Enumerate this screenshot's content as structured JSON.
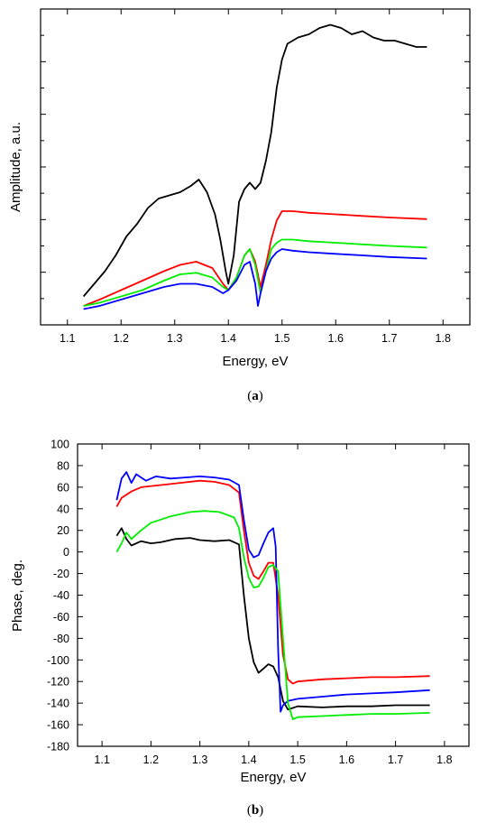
{
  "chart_data": [
    {
      "type": "line",
      "panel_label": {
        "open": "(",
        "letter": "a",
        "close": ")"
      },
      "xlabel": "Energy, eV",
      "ylabel": "Amplitude, a.u.",
      "xlim": [
        1.05,
        1.85
      ],
      "ylim": [
        0,
        1.0
      ],
      "x_ticks": [
        "1.1",
        "1.2",
        "1.3",
        "1.4",
        "1.5",
        "1.6",
        "1.7",
        "1.8"
      ],
      "y_tick_labels_shown": false,
      "series": [
        {
          "color": "#000000",
          "points": [
            [
              1.13,
              0.09
            ],
            [
              1.15,
              0.13
            ],
            [
              1.17,
              0.17
            ],
            [
              1.19,
              0.22
            ],
            [
              1.21,
              0.28
            ],
            [
              1.23,
              0.32
            ],
            [
              1.25,
              0.37
            ],
            [
              1.27,
              0.4
            ],
            [
              1.29,
              0.41
            ],
            [
              1.31,
              0.42
            ],
            [
              1.33,
              0.44
            ],
            [
              1.345,
              0.46
            ],
            [
              1.36,
              0.42
            ],
            [
              1.375,
              0.35
            ],
            [
              1.385,
              0.27
            ],
            [
              1.395,
              0.17
            ],
            [
              1.4,
              0.13
            ],
            [
              1.41,
              0.22
            ],
            [
              1.42,
              0.39
            ],
            [
              1.43,
              0.43
            ],
            [
              1.44,
              0.45
            ],
            [
              1.45,
              0.43
            ],
            [
              1.46,
              0.45
            ],
            [
              1.47,
              0.52
            ],
            [
              1.48,
              0.61
            ],
            [
              1.49,
              0.75
            ],
            [
              1.5,
              0.84
            ],
            [
              1.51,
              0.89
            ],
            [
              1.53,
              0.91
            ],
            [
              1.55,
              0.92
            ],
            [
              1.57,
              0.94
            ],
            [
              1.59,
              0.95
            ],
            [
              1.61,
              0.94
            ],
            [
              1.63,
              0.92
            ],
            [
              1.65,
              0.93
            ],
            [
              1.67,
              0.91
            ],
            [
              1.69,
              0.9
            ],
            [
              1.71,
              0.9
            ],
            [
              1.73,
              0.89
            ],
            [
              1.75,
              0.88
            ],
            [
              1.77,
              0.88
            ]
          ]
        },
        {
          "color": "#ff0000",
          "points": [
            [
              1.13,
              0.06
            ],
            [
              1.16,
              0.08
            ],
            [
              1.2,
              0.11
            ],
            [
              1.24,
              0.14
            ],
            [
              1.28,
              0.17
            ],
            [
              1.31,
              0.19
            ],
            [
              1.34,
              0.2
            ],
            [
              1.37,
              0.18
            ],
            [
              1.39,
              0.13
            ],
            [
              1.4,
              0.11
            ],
            [
              1.415,
              0.15
            ],
            [
              1.43,
              0.22
            ],
            [
              1.44,
              0.24
            ],
            [
              1.45,
              0.2
            ],
            [
              1.46,
              0.12
            ],
            [
              1.47,
              0.19
            ],
            [
              1.48,
              0.27
            ],
            [
              1.49,
              0.33
            ],
            [
              1.5,
              0.36
            ],
            [
              1.52,
              0.36
            ],
            [
              1.55,
              0.355
            ],
            [
              1.6,
              0.35
            ],
            [
              1.65,
              0.345
            ],
            [
              1.7,
              0.34
            ],
            [
              1.77,
              0.335
            ]
          ]
        },
        {
          "color": "#00ee00",
          "points": [
            [
              1.13,
              0.06
            ],
            [
              1.16,
              0.07
            ],
            [
              1.2,
              0.09
            ],
            [
              1.24,
              0.11
            ],
            [
              1.28,
              0.14
            ],
            [
              1.31,
              0.16
            ],
            [
              1.34,
              0.165
            ],
            [
              1.37,
              0.15
            ],
            [
              1.39,
              0.12
            ],
            [
              1.4,
              0.11
            ],
            [
              1.415,
              0.15
            ],
            [
              1.43,
              0.22
            ],
            [
              1.44,
              0.24
            ],
            [
              1.45,
              0.19
            ],
            [
              1.46,
              0.1
            ],
            [
              1.47,
              0.17
            ],
            [
              1.48,
              0.24
            ],
            [
              1.49,
              0.26
            ],
            [
              1.5,
              0.27
            ],
            [
              1.52,
              0.27
            ],
            [
              1.55,
              0.265
            ],
            [
              1.6,
              0.26
            ],
            [
              1.65,
              0.255
            ],
            [
              1.7,
              0.25
            ],
            [
              1.77,
              0.245
            ]
          ]
        },
        {
          "color": "#0000ff",
          "points": [
            [
              1.13,
              0.05
            ],
            [
              1.16,
              0.06
            ],
            [
              1.2,
              0.08
            ],
            [
              1.24,
              0.1
            ],
            [
              1.28,
              0.12
            ],
            [
              1.31,
              0.13
            ],
            [
              1.34,
              0.13
            ],
            [
              1.37,
              0.12
            ],
            [
              1.39,
              0.1
            ],
            [
              1.4,
              0.11
            ],
            [
              1.415,
              0.14
            ],
            [
              1.43,
              0.19
            ],
            [
              1.44,
              0.2
            ],
            [
              1.45,
              0.13
            ],
            [
              1.455,
              0.06
            ],
            [
              1.46,
              0.1
            ],
            [
              1.47,
              0.17
            ],
            [
              1.48,
              0.21
            ],
            [
              1.49,
              0.23
            ],
            [
              1.5,
              0.24
            ],
            [
              1.52,
              0.235
            ],
            [
              1.55,
              0.23
            ],
            [
              1.6,
              0.225
            ],
            [
              1.65,
              0.22
            ],
            [
              1.7,
              0.215
            ],
            [
              1.77,
              0.21
            ]
          ]
        }
      ]
    },
    {
      "type": "line",
      "panel_label": {
        "open": "(",
        "letter": "b",
        "close": ")"
      },
      "xlabel": "Energy, eV",
      "ylabel": "Phase, deg.",
      "xlim": [
        1.05,
        1.85
      ],
      "ylim": [
        -180,
        100
      ],
      "x_ticks": [
        "1.1",
        "1.2",
        "1.3",
        "1.4",
        "1.5",
        "1.6",
        "1.7",
        "1.8"
      ],
      "y_ticks": [
        "-180",
        "-160",
        "-140",
        "-120",
        "-100",
        "-80",
        "-60",
        "-40",
        "-20",
        "0",
        "20",
        "40",
        "60",
        "80",
        "100"
      ],
      "series": [
        {
          "color": "#000000",
          "points": [
            [
              1.13,
              15
            ],
            [
              1.14,
              22
            ],
            [
              1.15,
              12
            ],
            [
              1.16,
              6
            ],
            [
              1.18,
              10
            ],
            [
              1.2,
              8
            ],
            [
              1.22,
              9
            ],
            [
              1.25,
              12
            ],
            [
              1.28,
              13
            ],
            [
              1.3,
              11
            ],
            [
              1.33,
              10
            ],
            [
              1.36,
              11
            ],
            [
              1.38,
              7
            ],
            [
              1.39,
              -40
            ],
            [
              1.4,
              -80
            ],
            [
              1.41,
              -102
            ],
            [
              1.42,
              -112
            ],
            [
              1.43,
              -108
            ],
            [
              1.44,
              -104
            ],
            [
              1.45,
              -106
            ],
            [
              1.46,
              -116
            ],
            [
              1.47,
              -138
            ],
            [
              1.48,
              -146
            ],
            [
              1.5,
              -143
            ],
            [
              1.55,
              -144
            ],
            [
              1.6,
              -143
            ],
            [
              1.65,
              -143
            ],
            [
              1.7,
              -142
            ],
            [
              1.77,
              -142
            ]
          ]
        },
        {
          "color": "#ff0000",
          "points": [
            [
              1.13,
              42
            ],
            [
              1.14,
              50
            ],
            [
              1.16,
              56
            ],
            [
              1.18,
              60
            ],
            [
              1.22,
              62
            ],
            [
              1.26,
              64
            ],
            [
              1.3,
              66
            ],
            [
              1.33,
              65
            ],
            [
              1.36,
              62
            ],
            [
              1.38,
              55
            ],
            [
              1.39,
              20
            ],
            [
              1.4,
              -10
            ],
            [
              1.41,
              -22
            ],
            [
              1.42,
              -25
            ],
            [
              1.43,
              -18
            ],
            [
              1.44,
              -10
            ],
            [
              1.45,
              -10
            ],
            [
              1.46,
              -40
            ],
            [
              1.47,
              -95
            ],
            [
              1.48,
              -118
            ],
            [
              1.49,
              -122
            ],
            [
              1.5,
              -120
            ],
            [
              1.55,
              -118
            ],
            [
              1.6,
              -117
            ],
            [
              1.65,
              -116
            ],
            [
              1.7,
              -116
            ],
            [
              1.77,
              -115
            ]
          ]
        },
        {
          "color": "#0000ff",
          "points": [
            [
              1.13,
              48
            ],
            [
              1.14,
              68
            ],
            [
              1.15,
              74
            ],
            [
              1.16,
              64
            ],
            [
              1.17,
              72
            ],
            [
              1.19,
              66
            ],
            [
              1.21,
              70
            ],
            [
              1.24,
              68
            ],
            [
              1.27,
              69
            ],
            [
              1.3,
              70
            ],
            [
              1.33,
              69
            ],
            [
              1.36,
              67
            ],
            [
              1.38,
              62
            ],
            [
              1.39,
              30
            ],
            [
              1.4,
              2
            ],
            [
              1.41,
              -5
            ],
            [
              1.42,
              -3
            ],
            [
              1.43,
              8
            ],
            [
              1.44,
              18
            ],
            [
              1.45,
              22
            ],
            [
              1.455,
              5
            ],
            [
              1.46,
              -90
            ],
            [
              1.465,
              -148
            ],
            [
              1.47,
              -142
            ],
            [
              1.48,
              -138
            ],
            [
              1.5,
              -136
            ],
            [
              1.55,
              -134
            ],
            [
              1.6,
              -132
            ],
            [
              1.65,
              -131
            ],
            [
              1.7,
              -130
            ],
            [
              1.77,
              -128
            ]
          ]
        },
        {
          "color": "#00ee00",
          "points": [
            [
              1.13,
              0
            ],
            [
              1.14,
              8
            ],
            [
              1.15,
              18
            ],
            [
              1.16,
              12
            ],
            [
              1.18,
              20
            ],
            [
              1.2,
              27
            ],
            [
              1.24,
              33
            ],
            [
              1.28,
              37
            ],
            [
              1.31,
              38
            ],
            [
              1.34,
              37
            ],
            [
              1.37,
              32
            ],
            [
              1.38,
              22
            ],
            [
              1.39,
              -5
            ],
            [
              1.4,
              -24
            ],
            [
              1.41,
              -33
            ],
            [
              1.42,
              -32
            ],
            [
              1.43,
              -24
            ],
            [
              1.44,
              -14
            ],
            [
              1.45,
              -12
            ],
            [
              1.46,
              -18
            ],
            [
              1.47,
              -80
            ],
            [
              1.48,
              -140
            ],
            [
              1.49,
              -155
            ],
            [
              1.5,
              -153
            ],
            [
              1.55,
              -152
            ],
            [
              1.6,
              -151
            ],
            [
              1.65,
              -150
            ],
            [
              1.7,
              -150
            ],
            [
              1.77,
              -149
            ]
          ]
        }
      ]
    }
  ]
}
